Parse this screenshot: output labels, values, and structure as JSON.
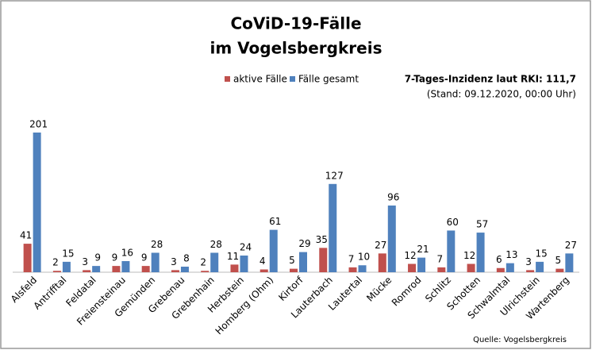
{
  "chart_data": {
    "type": "bar",
    "title_lines": [
      "CoViD-19-Fälle",
      "im Vogelsbergkreis"
    ],
    "annotations": [
      "7-Tages-Inzidenz laut RKI: 111,7",
      "(Stand: 09.12.2020, 00:00 Uhr)"
    ],
    "source": "Quelle: Vogelsbergkreis",
    "categories": [
      "Alsfeld",
      "Antrifftal",
      "Feldatal",
      "Freiensteinau",
      "Gemünden",
      "Grebenau",
      "Grebenhain",
      "Herbstein",
      "Homberg (Ohm)",
      "Kirtorf",
      "Lauterbach",
      "Lautertal",
      "Mücke",
      "Romrod",
      "Schlitz",
      "Schotten",
      "Schwalmtal",
      "Ulrichstein",
      "Wartenberg"
    ],
    "series": [
      {
        "name": "aktive Fälle",
        "color": "#c0504d",
        "values": [
          41,
          2,
          3,
          9,
          9,
          3,
          2,
          11,
          4,
          5,
          35,
          7,
          27,
          12,
          7,
          12,
          6,
          3,
          5
        ]
      },
      {
        "name": "Fälle gesamt",
        "color": "#4f81bd",
        "values": [
          201,
          15,
          9,
          16,
          28,
          8,
          28,
          24,
          61,
          29,
          127,
          10,
          96,
          21,
          60,
          57,
          13,
          15,
          27
        ]
      }
    ]
  }
}
